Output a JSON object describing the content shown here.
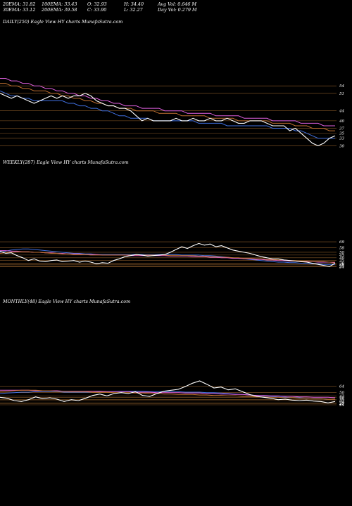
{
  "header": {
    "ema20": "20EMA: 31.82",
    "ema100": "100EMA: 33.43",
    "open": "O: 32.93",
    "high": "H: 34.40",
    "avg_vol": "Avg Vol: 0.646  M",
    "ema30": "30EMA: 33.12",
    "ema200": "200EMA: 39.58",
    "close": "C: 33.90",
    "low": "L: 32.27",
    "day_vol": "Day Vol: 0.279 M"
  },
  "panels": {
    "daily": {
      "title": "DAILY(250) Eagle  View  HY charts MunafaSutra.com"
    },
    "weekly": {
      "title": "WEEKLY(287) Eagle  View  HY charts MunafaSutra.com"
    },
    "monthly": {
      "title": "MONTHLY(48) Eagle  View  HY charts MunafaSutra.com"
    }
  },
  "colors": {
    "background": "#000000",
    "price": "#ffffff",
    "ema_fast": "#3f6fe0",
    "ema_mid": "#e060e0",
    "ema_slow": "#c07030",
    "hline": "#8a5a28"
  },
  "chart_data": [
    {
      "type": "line",
      "name": "daily",
      "ylim": [
        27,
        58
      ],
      "tick_labels": [
        "54",
        "51",
        "44",
        "40",
        "37",
        "35",
        "33",
        "30"
      ],
      "series": [
        {
          "role": "price",
          "color": "#ffffff",
          "values": [
            51,
            50,
            49,
            50,
            49,
            48,
            47,
            48,
            49,
            50,
            49,
            50,
            49,
            50,
            50,
            51,
            50,
            48,
            47,
            46,
            46,
            45,
            45,
            44,
            42,
            40,
            41,
            40,
            40,
            40,
            40,
            41,
            40,
            40,
            41,
            40,
            40,
            41,
            40,
            40,
            41,
            40,
            39,
            39,
            40,
            40,
            40,
            39,
            38,
            38,
            38,
            36,
            37,
            35,
            33,
            31,
            30,
            31,
            33,
            34
          ]
        },
        {
          "role": "ema",
          "color": "#3f6fe0",
          "values": [
            52,
            51,
            50,
            50,
            49,
            49,
            48,
            48,
            48,
            48,
            48,
            48,
            47,
            47,
            46,
            46,
            45,
            45,
            44,
            44,
            43,
            42,
            42,
            41,
            41,
            41,
            41,
            40,
            40,
            40,
            40,
            40,
            40,
            40,
            40,
            39,
            39,
            39,
            39,
            39,
            38,
            38,
            38,
            38,
            38,
            38,
            38,
            38,
            37,
            37,
            37,
            37,
            36,
            36,
            35,
            34,
            33,
            33,
            33,
            33
          ]
        },
        {
          "role": "ema",
          "color": "#e060e0",
          "values": [
            57,
            57,
            56,
            56,
            55,
            55,
            54,
            54,
            53,
            53,
            52,
            52,
            51,
            51,
            50,
            50,
            49,
            49,
            48,
            48,
            47,
            47,
            46,
            46,
            46,
            45,
            45,
            45,
            45,
            44,
            44,
            44,
            44,
            43,
            43,
            43,
            43,
            43,
            42,
            42,
            42,
            42,
            42,
            41,
            41,
            41,
            41,
            41,
            40,
            40,
            40,
            40,
            40,
            39,
            39,
            39,
            39,
            38,
            38,
            38
          ]
        },
        {
          "role": "ema",
          "color": "#c07030",
          "values": [
            55,
            55,
            54,
            54,
            53,
            53,
            52,
            52,
            52,
            51,
            51,
            50,
            50,
            49,
            49,
            48,
            48,
            47,
            47,
            46,
            46,
            45,
            45,
            45,
            44,
            44,
            44,
            44,
            43,
            43,
            43,
            43,
            42,
            42,
            42,
            42,
            42,
            41,
            41,
            41,
            41,
            41,
            40,
            40,
            40,
            40,
            40,
            40,
            39,
            39,
            39,
            39,
            38,
            38,
            38,
            37,
            37,
            37,
            36,
            36
          ]
        }
      ]
    },
    {
      "type": "line",
      "name": "weekly",
      "ylim": [
        18,
        110
      ],
      "tick_labels": [
        "69",
        "58",
        "50",
        "45",
        "40",
        "35",
        "30",
        "28",
        "25",
        "24"
      ],
      "series": [
        {
          "role": "price",
          "color": "#ffffff",
          "values": [
            52,
            48,
            49,
            44,
            40,
            35,
            38,
            34,
            33,
            35,
            36,
            33,
            34,
            35,
            32,
            34,
            32,
            29,
            31,
            30,
            35,
            38,
            42,
            44,
            46,
            45,
            43,
            44,
            45,
            46,
            50,
            55,
            60,
            57,
            62,
            66,
            63,
            65,
            60,
            62,
            58,
            54,
            52,
            50,
            48,
            45,
            42,
            40,
            38,
            38,
            36,
            35,
            34,
            33,
            32,
            30,
            28,
            26,
            24,
            30
          ]
        },
        {
          "role": "ema",
          "color": "#3f6fe0",
          "values": [
            50,
            52,
            54,
            55,
            56,
            56,
            55,
            54,
            53,
            52,
            51,
            50,
            49,
            48,
            48,
            47,
            47,
            46,
            46,
            46,
            46,
            46,
            46,
            46,
            46,
            46,
            46,
            46,
            46,
            46,
            46,
            46,
            45,
            45,
            45,
            45,
            44,
            44,
            43,
            42,
            41,
            40,
            39,
            38,
            37,
            36,
            35,
            34,
            33,
            32,
            32,
            31,
            31,
            30,
            30,
            29,
            29,
            28,
            28,
            28
          ]
        },
        {
          "role": "ema",
          "color": "#e060e0",
          "values": [
            53,
            53,
            52,
            52,
            51,
            51,
            50,
            50,
            49,
            49,
            48,
            48,
            47,
            47,
            47,
            46,
            46,
            46,
            45,
            45,
            45,
            45,
            45,
            44,
            44,
            44,
            44,
            44,
            44,
            44,
            43,
            43,
            43,
            43,
            42,
            42,
            42,
            41,
            41,
            40,
            40,
            39,
            39,
            38,
            38,
            37,
            37,
            36,
            36,
            35,
            35,
            34,
            34,
            33,
            33,
            33,
            32,
            32,
            32,
            31
          ]
        },
        {
          "role": "ema",
          "color": "#c07030",
          "values": [
            48,
            49,
            50,
            51,
            51,
            51,
            50,
            50,
            49,
            48,
            48,
            47,
            47,
            46,
            46,
            46,
            45,
            45,
            45,
            45,
            45,
            45,
            45,
            45,
            45,
            45,
            45,
            45,
            45,
            45,
            44,
            44,
            44,
            44,
            44,
            43,
            43,
            42,
            42,
            41,
            41,
            40,
            40,
            39,
            39,
            38,
            38,
            37,
            37,
            36,
            36,
            35,
            35,
            34,
            34,
            33,
            33,
            33,
            32,
            32
          ]
        }
      ]
    },
    {
      "type": "line",
      "name": "monthly",
      "ylim": [
        15,
        120
      ],
      "tick_labels": [
        "64",
        "50",
        "43",
        "40",
        "35",
        "33",
        "28",
        "27",
        "24"
      ],
      "series": [
        {
          "role": "price",
          "color": "#ffffff",
          "values": [
            40,
            38,
            33,
            31,
            35,
            41,
            37,
            39,
            36,
            31,
            35,
            33,
            38,
            44,
            47,
            43,
            48,
            50,
            48,
            52,
            44,
            42,
            48,
            53,
            55,
            57,
            63,
            70,
            75,
            68,
            60,
            62,
            56,
            58,
            52,
            46,
            42,
            40,
            38,
            35,
            36,
            34,
            33,
            34,
            32,
            31,
            28,
            31
          ]
        },
        {
          "role": "ema",
          "color": "#3f6fe0",
          "values": [
            48,
            49,
            50,
            51,
            51,
            52,
            52,
            52,
            52,
            51,
            51,
            51,
            51,
            51,
            52,
            52,
            52,
            53,
            53,
            53,
            53,
            52,
            52,
            52,
            52,
            52,
            51,
            51,
            51,
            50,
            50,
            49,
            48,
            47,
            46,
            45,
            44,
            43,
            42,
            41,
            40,
            39,
            39,
            38,
            37,
            37,
            36,
            36
          ]
        },
        {
          "role": "ema",
          "color": "#e060e0",
          "values": [
            55,
            55,
            55,
            55,
            55,
            54,
            54,
            54,
            54,
            53,
            53,
            53,
            53,
            53,
            53,
            52,
            52,
            52,
            52,
            51,
            51,
            51,
            50,
            50,
            50,
            50,
            49,
            49,
            49,
            48,
            48,
            47,
            47,
            46,
            46,
            45,
            44,
            44,
            43,
            43,
            42,
            42,
            41,
            41,
            40,
            40,
            40,
            39
          ]
        },
        {
          "role": "ema",
          "color": "#c07030",
          "values": [
            52,
            53,
            54,
            55,
            55,
            55,
            54,
            54,
            53,
            53,
            52,
            52,
            52,
            51,
            51,
            51,
            50,
            50,
            50,
            49,
            49,
            48,
            48,
            47,
            47,
            46,
            46,
            46,
            45,
            45,
            44,
            44,
            43,
            43,
            42,
            42,
            41,
            41,
            40,
            40,
            39,
            39,
            38,
            38,
            37,
            37,
            36,
            36
          ]
        }
      ]
    }
  ]
}
